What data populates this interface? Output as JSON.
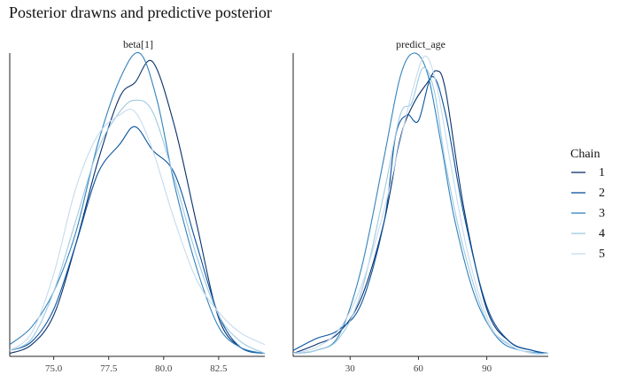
{
  "title": "Posterior drawns and predictive posterior",
  "chart_data": [
    {
      "type": "line",
      "panel": "beta[1]",
      "xticks": [
        75.0,
        77.5,
        80.0,
        82.5
      ],
      "xtick_labels": [
        "75.0",
        "77.5",
        "80.0",
        "82.5"
      ],
      "xlim": [
        73.0,
        84.6
      ],
      "ylim": [
        0,
        1.03
      ],
      "series": [
        {
          "name": "1",
          "x": [
            73.0,
            74.0,
            75.0,
            76.0,
            77.0,
            78.0,
            78.7,
            79.5,
            80.5,
            81.5,
            82.5,
            83.5,
            84.6
          ],
          "values": [
            0.01,
            0.04,
            0.14,
            0.38,
            0.66,
            0.88,
            0.93,
            1.0,
            0.78,
            0.45,
            0.13,
            0.03,
            0.01
          ]
        },
        {
          "name": "2",
          "x": [
            73.0,
            74.0,
            75.0,
            76.0,
            77.0,
            78.0,
            78.7,
            79.5,
            80.5,
            81.5,
            82.5,
            83.5,
            84.6
          ],
          "values": [
            0.02,
            0.05,
            0.16,
            0.38,
            0.62,
            0.72,
            0.78,
            0.7,
            0.62,
            0.38,
            0.14,
            0.03,
            0.01
          ]
        },
        {
          "name": "3",
          "x": [
            73.0,
            74.0,
            75.0,
            76.0,
            77.0,
            78.0,
            78.9,
            79.7,
            80.5,
            81.5,
            82.5,
            83.5,
            84.6
          ],
          "values": [
            0.04,
            0.1,
            0.22,
            0.42,
            0.72,
            0.94,
            1.03,
            0.87,
            0.58,
            0.3,
            0.1,
            0.03,
            0.01
          ]
        },
        {
          "name": "4",
          "x": [
            73.0,
            74.0,
            75.0,
            76.0,
            77.0,
            78.0,
            78.7,
            79.5,
            80.5,
            81.5,
            82.5,
            83.5,
            84.6
          ],
          "values": [
            0.02,
            0.06,
            0.22,
            0.46,
            0.7,
            0.83,
            0.87,
            0.83,
            0.6,
            0.34,
            0.14,
            0.05,
            0.01
          ]
        },
        {
          "name": "5",
          "x": [
            73.0,
            74.0,
            75.0,
            76.0,
            77.0,
            78.0,
            78.7,
            79.5,
            80.5,
            81.5,
            82.5,
            83.5,
            84.6
          ],
          "values": [
            0.02,
            0.08,
            0.28,
            0.57,
            0.75,
            0.82,
            0.83,
            0.7,
            0.46,
            0.26,
            0.15,
            0.08,
            0.04
          ]
        }
      ]
    },
    {
      "type": "line",
      "panel": "predict_age",
      "xticks": [
        30,
        60,
        90
      ],
      "xtick_labels": [
        "30",
        "60",
        "90"
      ],
      "xlim": [
        5,
        117
      ],
      "ylim": [
        0,
        1.03
      ],
      "series": [
        {
          "name": "1",
          "x": [
            5,
            15,
            25,
            35,
            45,
            52,
            58,
            64,
            68,
            72,
            80,
            90,
            100,
            110,
            117
          ],
          "values": [
            0.01,
            0.04,
            0.08,
            0.2,
            0.46,
            0.74,
            0.86,
            0.93,
            0.97,
            0.9,
            0.5,
            0.16,
            0.05,
            0.02,
            0.01
          ]
        },
        {
          "name": "2",
          "x": [
            5,
            15,
            25,
            35,
            45,
            50,
            55,
            60,
            66,
            72,
            80,
            90,
            100,
            110,
            117
          ],
          "values": [
            0.02,
            0.06,
            0.09,
            0.18,
            0.46,
            0.75,
            0.82,
            0.8,
            0.95,
            0.82,
            0.48,
            0.17,
            0.05,
            0.02,
            0.01
          ]
        },
        {
          "name": "3",
          "x": [
            5,
            15,
            25,
            35,
            45,
            52,
            58,
            64,
            70,
            76,
            85,
            95,
            105,
            117
          ],
          "values": [
            0.01,
            0.02,
            0.07,
            0.3,
            0.68,
            0.95,
            1.03,
            0.96,
            0.72,
            0.46,
            0.2,
            0.06,
            0.02,
            0.01
          ]
        },
        {
          "name": "4",
          "x": [
            5,
            15,
            25,
            35,
            45,
            52,
            57,
            62,
            67,
            72,
            80,
            90,
            100,
            110,
            117
          ],
          "values": [
            0.01,
            0.02,
            0.06,
            0.22,
            0.56,
            0.82,
            0.86,
            0.98,
            0.9,
            0.65,
            0.36,
            0.12,
            0.04,
            0.01,
            0.01
          ]
        },
        {
          "name": "5",
          "x": [
            5,
            15,
            25,
            35,
            45,
            52,
            58,
            63,
            68,
            74,
            82,
            92,
            102,
            112,
            117
          ],
          "values": [
            0.01,
            0.03,
            0.09,
            0.24,
            0.5,
            0.73,
            0.92,
            1.02,
            0.92,
            0.66,
            0.34,
            0.1,
            0.03,
            0.01,
            0.01
          ]
        }
      ]
    }
  ],
  "legend": {
    "title": "Chain",
    "items": [
      {
        "label": "1",
        "color": "#08306b"
      },
      {
        "label": "2",
        "color": "#08519c"
      },
      {
        "label": "3",
        "color": "#3182bd"
      },
      {
        "label": "4",
        "color": "#9ecae1"
      },
      {
        "label": "5",
        "color": "#c6dbef"
      }
    ]
  }
}
